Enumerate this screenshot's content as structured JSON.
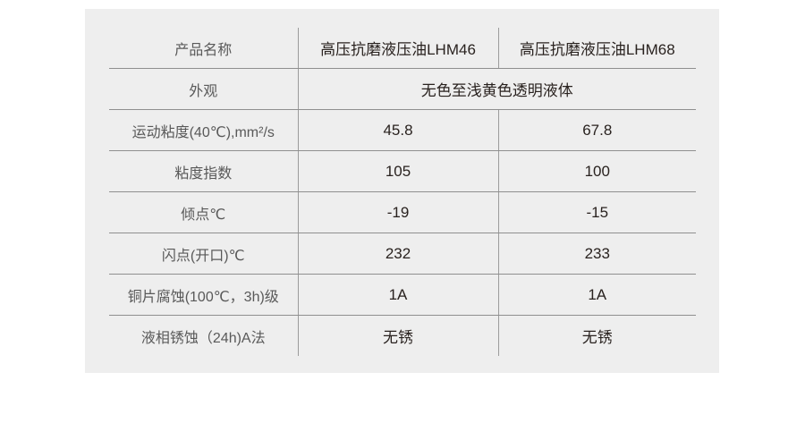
{
  "colors": {
    "page_background": "#ffffff",
    "panel_background": "#eeeeee",
    "grid_line_horizontal": "#8f8f8f",
    "grid_line_vertical": "#9c9c9c",
    "label_text": "#595959",
    "value_text": "#29221f"
  },
  "spec_table": {
    "header": {
      "label": "产品名称",
      "product1": "高压抗磨液压油LHM46",
      "product2": "高压抗磨液压油LHM68"
    },
    "appearance": {
      "label": "外观",
      "value": "无色至浅黄色透明液体"
    },
    "rows": [
      {
        "label": "运动粘度(40℃),mm²/s",
        "lhm46": "45.8",
        "lhm68": "67.8"
      },
      {
        "label": "粘度指数",
        "lhm46": "105",
        "lhm68": "100"
      },
      {
        "label": "倾点℃",
        "lhm46": "-19",
        "lhm68": "-15"
      },
      {
        "label": "闪点(开口)℃",
        "lhm46": "232",
        "lhm68": "233"
      },
      {
        "label": "铜片腐蚀(100℃，3h)级",
        "lhm46": "1A",
        "lhm68": "1A"
      },
      {
        "label": "液相锈蚀（24h)A法",
        "lhm46": "无锈",
        "lhm68": "无锈"
      }
    ]
  }
}
